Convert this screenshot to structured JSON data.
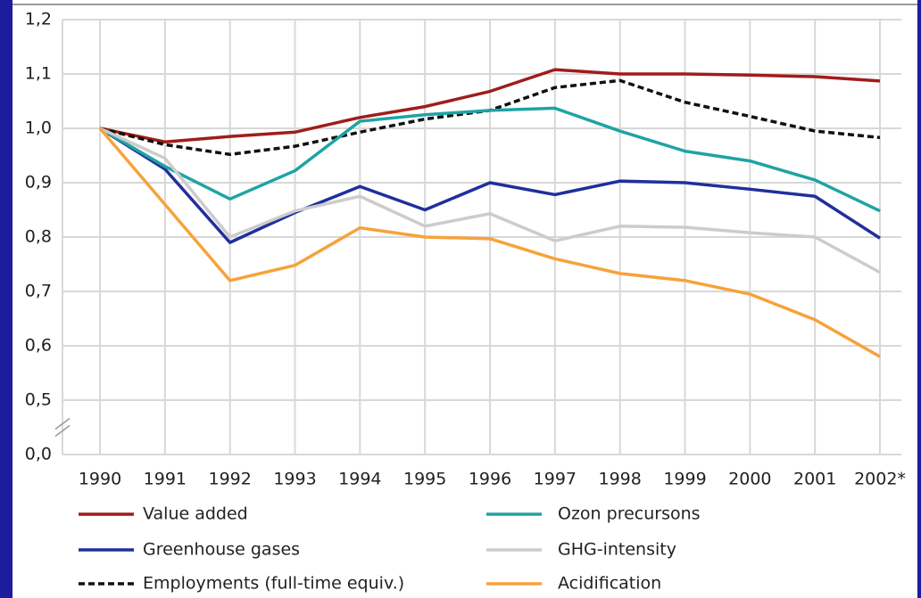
{
  "chart_data": {
    "type": "line",
    "categories": [
      "1990",
      "1991",
      "1992",
      "1993",
      "1994",
      "1995",
      "1996",
      "1997",
      "1998",
      "1999",
      "2000",
      "2001",
      "2002*"
    ],
    "series": [
      {
        "name": "Value added",
        "color": "#a01c1c",
        "dash": false,
        "values": [
          1.0,
          0.975,
          0.985,
          0.993,
          1.02,
          1.04,
          1.068,
          1.108,
          1.1,
          1.1,
          1.098,
          1.095,
          1.087
        ]
      },
      {
        "name": "Greenhouse gases",
        "color": "#1f2f9c",
        "dash": false,
        "values": [
          1.0,
          0.925,
          0.79,
          0.845,
          0.893,
          0.85,
          0.9,
          0.878,
          0.903,
          0.9,
          0.888,
          0.875,
          0.798
        ]
      },
      {
        "name": "Employments (full-time equiv.)",
        "color": "#111111",
        "dash": true,
        "values": [
          1.0,
          0.97,
          0.952,
          0.967,
          0.993,
          1.017,
          1.033,
          1.075,
          1.088,
          1.048,
          1.022,
          0.995,
          0.983
        ]
      },
      {
        "name": "Ozon precursons",
        "color": "#1fa3a3",
        "dash": false,
        "values": [
          1.0,
          0.93,
          0.87,
          0.922,
          1.013,
          1.025,
          1.033,
          1.037,
          0.995,
          0.958,
          0.94,
          0.905,
          0.848
        ]
      },
      {
        "name": "GHG-intensity",
        "color": "#cccccc",
        "dash": false,
        "values": [
          1.0,
          0.945,
          0.8,
          0.848,
          0.875,
          0.82,
          0.843,
          0.793,
          0.82,
          0.818,
          0.808,
          0.8,
          0.735
        ]
      },
      {
        "name": "Acidification",
        "color": "#f7a23a",
        "dash": false,
        "values": [
          1.0,
          0.86,
          0.72,
          0.748,
          0.817,
          0.8,
          0.797,
          0.76,
          0.733,
          0.72,
          0.695,
          0.648,
          0.58
        ]
      }
    ],
    "ylim": [
      0,
      1.2
    ],
    "axis_break": [
      0,
      0.5
    ],
    "yticks": [
      {
        "value": 0,
        "label": "0,0"
      },
      {
        "value": 0.5,
        "label": "0,5"
      },
      {
        "value": 0.6,
        "label": "0,6"
      },
      {
        "value": 0.7,
        "label": "0,7"
      },
      {
        "value": 0.8,
        "label": "0,8"
      },
      {
        "value": 0.9,
        "label": "0,9"
      },
      {
        "value": 1.0,
        "label": "1,0"
      },
      {
        "value": 1.1,
        "label": "1,1"
      },
      {
        "value": 1.2,
        "label": "1,2"
      }
    ],
    "grid": true
  }
}
